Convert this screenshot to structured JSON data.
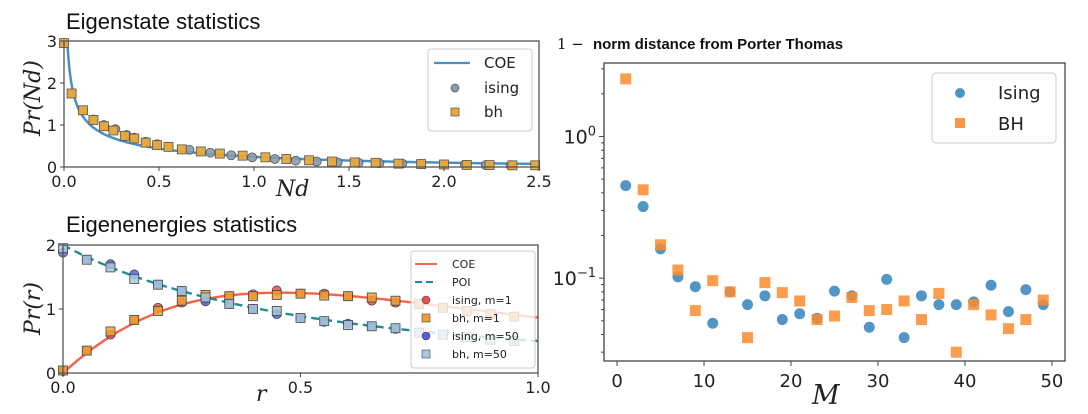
{
  "chart_data": [
    {
      "id": "eigenstate",
      "type": "line",
      "title": "Eigenstate statistics",
      "xlabel": "Nd",
      "ylabel": "Pr(Nd)",
      "xlim": [
        0,
        2.5
      ],
      "ylim": [
        0,
        3
      ],
      "xticks": [
        "0.0",
        "0.5",
        "1.0",
        "1.5",
        "2.0",
        "2.5"
      ],
      "xtick_values": [
        0,
        0.5,
        1.0,
        1.5,
        2.0,
        2.5
      ],
      "yticks": [
        "0",
        "1",
        "2",
        "3"
      ],
      "ytick_values": [
        0,
        1,
        2,
        3
      ],
      "legend_position": "top-right",
      "colors": {
        "coe": "#4a90c8",
        "ising": "#8a9bb0",
        "bh": "#e8a83a"
      },
      "curve": {
        "name": "COE",
        "function": "porter-thomas"
      },
      "series": [
        {
          "name": "ising",
          "marker": "circle",
          "x": [
            0.0,
            0.04,
            0.1,
            0.155,
            0.21,
            0.27,
            0.33,
            0.37,
            0.43,
            0.49,
            0.55,
            0.66,
            0.77,
            0.88,
            0.99,
            1.11,
            1.22,
            1.33,
            1.44,
            1.55,
            1.66,
            1.78,
            1.88,
            2.0,
            2.11,
            2.22,
            2.35
          ],
          "y": [
            2.95,
            1.75,
            1.35,
            1.13,
            1.0,
            0.9,
            0.76,
            0.7,
            0.6,
            0.54,
            0.48,
            0.41,
            0.34,
            0.28,
            0.23,
            0.19,
            0.15,
            0.13,
            0.11,
            0.1,
            0.09,
            0.08,
            0.07,
            0.06,
            0.05,
            0.045,
            0.04
          ]
        },
        {
          "name": "bh",
          "marker": "square",
          "x": [
            0.0,
            0.04,
            0.1,
            0.155,
            0.21,
            0.26,
            0.32,
            0.37,
            0.43,
            0.49,
            0.55,
            0.62,
            0.72,
            0.82,
            0.94,
            1.06,
            1.17,
            1.29,
            1.41,
            1.53,
            1.64,
            1.76,
            1.88,
            2.0,
            2.12,
            2.24,
            2.36,
            2.48
          ],
          "y": [
            2.95,
            1.75,
            1.35,
            1.12,
            0.97,
            0.87,
            0.74,
            0.68,
            0.58,
            0.52,
            0.48,
            0.42,
            0.37,
            0.32,
            0.27,
            0.23,
            0.19,
            0.16,
            0.13,
            0.11,
            0.1,
            0.08,
            0.07,
            0.06,
            0.05,
            0.045,
            0.04,
            0.04
          ]
        }
      ]
    },
    {
      "id": "eigenenergies",
      "type": "line",
      "title": "Eigenenergies statistics",
      "xlabel": "r",
      "ylabel": "Pr(r)",
      "xlim": [
        0,
        1.0
      ],
      "ylim": [
        0,
        2
      ],
      "xticks": [
        "0.0",
        "0.5",
        "1.0"
      ],
      "xtick_values": [
        0,
        0.5,
        1.0
      ],
      "yticks": [
        "0",
        "1",
        "2"
      ],
      "ytick_values": [
        0,
        1,
        2
      ],
      "legend_position": "right",
      "colors": {
        "coe": "#f4634a",
        "poi": "#1a9090",
        "ising_m1": "#e85050",
        "bh_m1": "#f0a030",
        "ising_m50": "#5560d8",
        "bh_m50": "#a8c8dc"
      },
      "curves": [
        {
          "name": "COE",
          "style": "solid",
          "function": "coe-ratio"
        },
        {
          "name": "POI",
          "style": "dashed",
          "function": "poisson-ratio"
        }
      ],
      "x": [
        0.0,
        0.05,
        0.1,
        0.15,
        0.2,
        0.25,
        0.3,
        0.35,
        0.4,
        0.45,
        0.5,
        0.55,
        0.6,
        0.65,
        0.7,
        0.75,
        0.8,
        0.85,
        0.9,
        0.95
      ],
      "series": [
        {
          "name": "ising, m=1",
          "marker": "circle",
          "values": [
            0.03,
            0.35,
            0.6,
            0.83,
            1.02,
            1.1,
            1.16,
            1.2,
            1.23,
            1.29,
            1.24,
            1.24,
            1.2,
            1.13,
            1.1,
            1.08,
            1.02,
            0.96,
            0.92,
            0.88
          ]
        },
        {
          "name": "bh, m=1",
          "marker": "square",
          "values": [
            0.04,
            0.35,
            0.65,
            0.83,
            0.97,
            1.13,
            1.22,
            1.2,
            1.2,
            1.22,
            1.24,
            1.21,
            1.2,
            1.18,
            1.13,
            1.08,
            1.02,
            0.97,
            0.92,
            0.88
          ]
        },
        {
          "name": "ising, m=50",
          "marker": "circle",
          "values": [
            1.88,
            1.77,
            1.7,
            1.54,
            1.38,
            1.28,
            1.12,
            1.08,
            1.0,
            0.92,
            0.86,
            0.8,
            0.77,
            0.73,
            0.69,
            0.63,
            0.6,
            0.56,
            0.52,
            0.5
          ]
        },
        {
          "name": "bh, m=50",
          "marker": "square",
          "values": [
            1.95,
            1.77,
            1.65,
            1.47,
            1.38,
            1.28,
            1.18,
            1.08,
            1.0,
            0.97,
            0.86,
            0.81,
            0.75,
            0.73,
            0.7,
            0.63,
            0.6,
            0.56,
            0.52,
            0.5
          ]
        }
      ]
    },
    {
      "id": "porter-thomas-distance",
      "type": "scatter",
      "title_prefix": "1 −",
      "title": "norm distance from Porter Thomas",
      "xlabel": "M",
      "ylabel": "",
      "yscale": "log",
      "xlim": [
        -1.5,
        51.5
      ],
      "ylim": [
        0.026,
        3.3
      ],
      "xticks": [
        "0",
        "10",
        "20",
        "30",
        "40",
        "50"
      ],
      "xtick_values": [
        0,
        10,
        20,
        30,
        40,
        50
      ],
      "yticks": [
        {
          "base": "10",
          "exp": "0",
          "value": 1
        },
        {
          "base": "10",
          "exp": "−1",
          "value": 0.1
        }
      ],
      "legend_position": "top-right",
      "colors": {
        "ising": "#3a87bd",
        "bh": "#fb8c2e"
      },
      "x": [
        1,
        3,
        5,
        7,
        9,
        11,
        13,
        15,
        17,
        19,
        21,
        23,
        25,
        27,
        29,
        31,
        33,
        35,
        37,
        39,
        41,
        43,
        45,
        47,
        49
      ],
      "series": [
        {
          "name": "Ising",
          "marker": "circle",
          "values": [
            0.45,
            0.32,
            0.161,
            0.102,
            0.087,
            0.048,
            0.08,
            0.065,
            0.075,
            0.051,
            0.056,
            0.052,
            0.081,
            0.075,
            0.045,
            0.098,
            0.038,
            0.075,
            0.065,
            0.065,
            0.068,
            0.089,
            0.058,
            0.083,
            0.065
          ]
        },
        {
          "name": "BH",
          "marker": "square",
          "values": [
            2.55,
            0.42,
            0.172,
            0.114,
            0.059,
            0.096,
            0.08,
            0.038,
            0.093,
            0.079,
            0.069,
            0.051,
            0.054,
            0.073,
            0.059,
            0.06,
            0.069,
            0.051,
            0.078,
            0.03,
            0.065,
            0.055,
            0.044,
            0.051,
            0.07
          ]
        }
      ]
    }
  ]
}
